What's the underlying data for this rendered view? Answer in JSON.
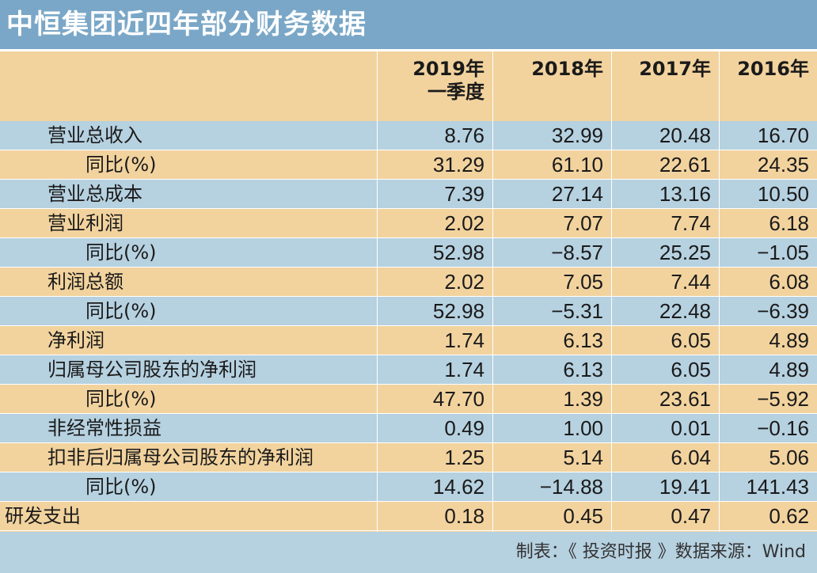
{
  "title": "中恒集团近四年部分财务数据",
  "headers": [
    {
      "line1": "2019年",
      "line2": "一季度"
    },
    {
      "line1": "2018年",
      "line2": ""
    },
    {
      "line1": "2017年",
      "line2": ""
    },
    {
      "line1": "2016年",
      "line2": ""
    }
  ],
  "source": "制表：《 投资时报 》数据来源：Wind",
  "colors": {
    "title_bar": "#7aa7c7",
    "row_blue": "#b6d1e0",
    "row_tan": "#f2d39e",
    "divider": "#ffffff"
  },
  "chart_data": {
    "type": "table",
    "title": "中恒集团近四年部分财务数据",
    "columns": [
      "2019年一季度",
      "2018年",
      "2017年",
      "2016年"
    ],
    "rows": [
      {
        "label": "营业总收入",
        "indent": 1,
        "shade": "blue",
        "values": [
          "8.76",
          "32.99",
          "20.48",
          "16.70"
        ]
      },
      {
        "label": "同比(%)",
        "indent": 2,
        "shade": "tan",
        "values": [
          "31.29",
          "61.10",
          "22.61",
          "24.35"
        ]
      },
      {
        "label": "营业总成本",
        "indent": 1,
        "shade": "blue",
        "values": [
          "7.39",
          "27.14",
          "13.16",
          "10.50"
        ]
      },
      {
        "label": "营业利润",
        "indent": 1,
        "shade": "tan",
        "values": [
          "2.02",
          "7.07",
          "7.74",
          "6.18"
        ]
      },
      {
        "label": "同比(%)",
        "indent": 2,
        "shade": "blue",
        "values": [
          "52.98",
          "−8.57",
          "25.25",
          "−1.05"
        ]
      },
      {
        "label": "利润总额",
        "indent": 1,
        "shade": "tan",
        "values": [
          "2.02",
          "7.05",
          "7.44",
          "6.08"
        ]
      },
      {
        "label": "同比(%)",
        "indent": 2,
        "shade": "blue",
        "values": [
          "52.98",
          "−5.31",
          "22.48",
          "−6.39"
        ]
      },
      {
        "label": "净利润",
        "indent": 1,
        "shade": "tan",
        "values": [
          "1.74",
          "6.13",
          "6.05",
          "4.89"
        ]
      },
      {
        "label": "归属母公司股东的净利润",
        "indent": 1,
        "shade": "blue",
        "values": [
          "1.74",
          "6.13",
          "6.05",
          "4.89"
        ]
      },
      {
        "label": "同比(%)",
        "indent": 2,
        "shade": "tan",
        "values": [
          "47.70",
          "1.39",
          "23.61",
          "−5.92"
        ]
      },
      {
        "label": "非经常性损益",
        "indent": 1,
        "shade": "blue",
        "values": [
          "0.49",
          "1.00",
          "0.01",
          "−0.16"
        ]
      },
      {
        "label": "扣非后归属母公司股东的净利润",
        "indent": 1,
        "shade": "tan",
        "values": [
          "1.25",
          "5.14",
          "6.04",
          "5.06"
        ]
      },
      {
        "label": "同比(%)",
        "indent": 2,
        "shade": "blue",
        "values": [
          "14.62",
          "−14.88",
          "19.41",
          "141.43"
        ]
      },
      {
        "label": "研发支出",
        "indent": 0,
        "shade": "tan",
        "values": [
          "0.18",
          "0.45",
          "0.47",
          "0.62"
        ]
      }
    ]
  }
}
